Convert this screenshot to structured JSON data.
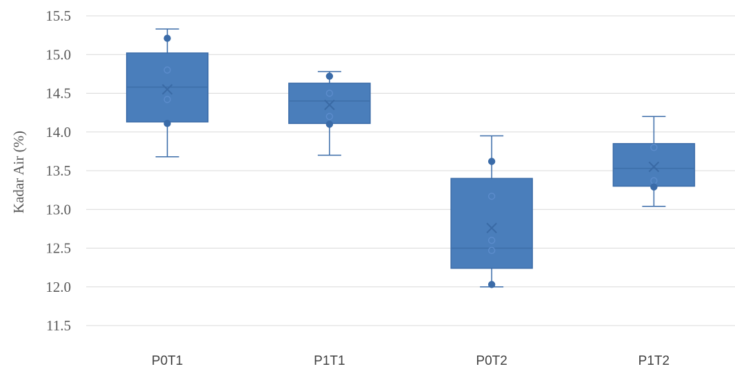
{
  "chart_data": {
    "type": "boxplot",
    "title": "",
    "xlabel": "",
    "ylabel": "Kadar Air (%)",
    "ylim": [
      11.5,
      15.5
    ],
    "ytick_step": 0.5,
    "y_ticks": [
      "11.5",
      "12.0",
      "12.5",
      "13.0",
      "13.5",
      "14.0",
      "14.5",
      "15.0",
      "15.5"
    ],
    "grid": true,
    "legend": "none",
    "colors": {
      "box": "#4a7ebb",
      "edge": "#3a6ba8",
      "grid": "#d9d9d9",
      "text": "#595959"
    },
    "categories": [
      "P0T1",
      "P1T1",
      "P0T2",
      "P1T2"
    ],
    "boxes": [
      {
        "category": "P0T1",
        "min": 13.68,
        "q1": 14.13,
        "median": 14.58,
        "q3": 15.02,
        "max": 15.33,
        "mean": 14.55,
        "points": [
          15.21,
          14.8,
          14.42,
          14.11
        ],
        "filled_points": [
          15.21,
          14.11
        ]
      },
      {
        "category": "P1T1",
        "min": 13.7,
        "q1": 14.11,
        "median": 14.4,
        "q3": 14.63,
        "max": 14.78,
        "mean": 14.35,
        "points": [
          14.72,
          14.5,
          14.2,
          14.1
        ],
        "filled_points": [
          14.72,
          14.1
        ]
      },
      {
        "category": "P0T2",
        "min": 12.0,
        "q1": 12.24,
        "median": 12.5,
        "q3": 13.4,
        "max": 13.95,
        "mean": 12.76,
        "points": [
          13.62,
          13.17,
          12.6,
          12.47,
          12.03
        ],
        "filled_points": [
          13.62,
          12.03
        ]
      },
      {
        "category": "P1T2",
        "min": 13.04,
        "q1": 13.3,
        "median": 13.53,
        "q3": 13.85,
        "max": 14.2,
        "mean": 13.55,
        "points": [
          13.8,
          13.37,
          13.29
        ],
        "filled_points": [
          13.29
        ]
      }
    ]
  }
}
